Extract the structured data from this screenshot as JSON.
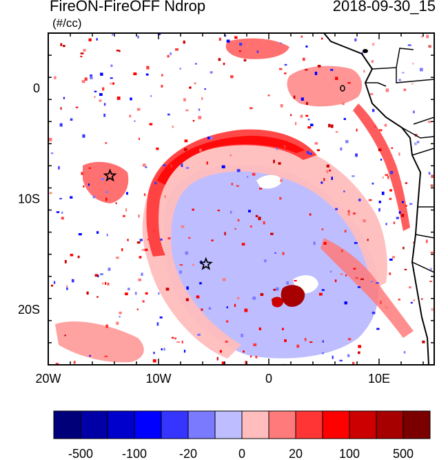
{
  "title": "FireON-FireOFF Ndrop",
  "timestamp": "2018-09-30_15",
  "units": "(#/cc)",
  "map": {
    "region": "Southeast Atlantic / southwest Africa",
    "lon_range": [
      -20,
      15
    ],
    "lat_range": [
      -25,
      5
    ],
    "x_ticks": [
      {
        "value": -20,
        "label": "20W"
      },
      {
        "value": -10,
        "label": "10W"
      },
      {
        "value": 0,
        "label": "0"
      },
      {
        "value": 10,
        "label": "10E"
      }
    ],
    "y_ticks": [
      {
        "value": 0,
        "label": "0"
      },
      {
        "value": -10,
        "label": "10S"
      },
      {
        "value": -20,
        "label": "20S"
      }
    ],
    "markers": [
      {
        "name": "Ascension Island",
        "lon": -14.4,
        "lat": -7.9,
        "symbol": "star"
      },
      {
        "name": "St Helena",
        "lon": -5.7,
        "lat": -15.9,
        "symbol": "star"
      }
    ]
  },
  "colorbar": {
    "colors": [
      "#00007a",
      "#0000a6",
      "#0000cc",
      "#0000ff",
      "#3535ff",
      "#7a7aff",
      "#bdbdff",
      "#ffbdbd",
      "#ff7a7a",
      "#ff3535",
      "#ff0000",
      "#cc0000",
      "#a60000",
      "#7a0000"
    ],
    "tick_labels": [
      "-500",
      "-100",
      "-20",
      "0",
      "20",
      "100",
      "500"
    ]
  }
}
